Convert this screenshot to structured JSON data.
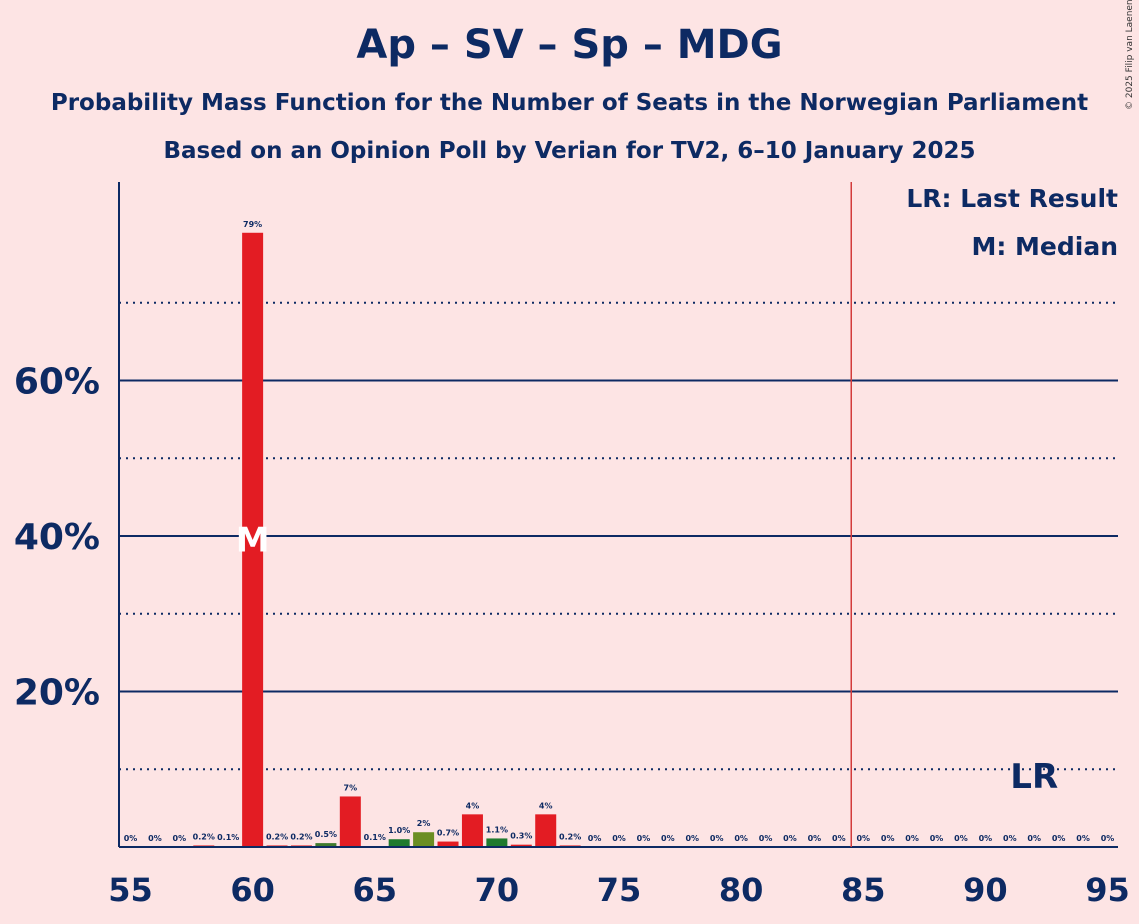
{
  "header": {
    "title": "Ap – SV – Sp – MDG",
    "subtitle": "Probability Mass Function for the Number of Seats in the Norwegian Parliament",
    "source": "Based on an Opinion Poll by Verian for TV2, 6–10 January 2025",
    "copyright": "© 2025 Filip van Laenen"
  },
  "legend": {
    "last_result": "LR: Last Result",
    "median": "M: Median"
  },
  "markers": {
    "lr_label": "LR",
    "median_label": "M"
  },
  "colors": {
    "background": "#fde4e4",
    "text": "#0d2a63",
    "bar_red": "#e31c23",
    "bar_green": "#3f7b2e",
    "bar_darkgreen": "#1f7a2e",
    "bar_olive": "#6b8e23",
    "majority_line": "#d33b3b"
  },
  "chart_data": {
    "type": "bar",
    "xlim": [
      55,
      95
    ],
    "ylim": [
      0,
      85
    ],
    "x_ticks": [
      55,
      60,
      65,
      70,
      75,
      80,
      85,
      90,
      95
    ],
    "y_ticks": [
      20,
      40,
      60
    ],
    "y_tick_labels": [
      "20%",
      "40%",
      "60%"
    ],
    "minor_gridlines": [
      10,
      30,
      50,
      70
    ],
    "grid": true,
    "legend_position": "top-right",
    "median": 60,
    "last_result": 92,
    "majority_line": 85,
    "seats": [
      55,
      56,
      57,
      58,
      59,
      60,
      61,
      62,
      63,
      64,
      65,
      66,
      67,
      68,
      69,
      70,
      71,
      72,
      73,
      74,
      75,
      76,
      77,
      78,
      79,
      80,
      81,
      82,
      83,
      84,
      85,
      86,
      87,
      88,
      89,
      90,
      91,
      92,
      93,
      94,
      95
    ],
    "values": [
      0,
      0,
      0,
      0.2,
      0.1,
      79,
      0.2,
      0.2,
      0.5,
      6.5,
      0.1,
      1.0,
      1.9,
      0.7,
      4.2,
      1.1,
      0.3,
      4.2,
      0.2,
      0,
      0,
      0,
      0,
      0,
      0,
      0,
      0,
      0,
      0,
      0,
      0,
      0,
      0,
      0,
      0,
      0,
      0,
      0,
      0,
      0,
      0
    ],
    "labels": [
      "0%",
      "0%",
      "0%",
      "0.2%",
      "0.1%",
      "79%",
      "0.2%",
      "0.2%",
      "0.5%",
      "7%",
      "0.1%",
      "1.0%",
      "2%",
      "0.7%",
      "4%",
      "1.1%",
      "0.3%",
      "4%",
      "0.2%",
      "0%",
      "0%",
      "0%",
      "0%",
      "0%",
      "0%",
      "0%",
      "0%",
      "0%",
      "0%",
      "0%",
      "0%",
      "0%",
      "0%",
      "0%",
      "0%",
      "0%",
      "0%",
      "0%",
      "0%",
      "0%",
      "0%"
    ],
    "bar_colors": [
      "red",
      "red",
      "red",
      "red",
      "red",
      "red",
      "red",
      "red",
      "green",
      "red",
      "red",
      "darkgreen",
      "olive",
      "red",
      "red",
      "darkgreen",
      "red",
      "red",
      "red",
      "red",
      "red",
      "red",
      "red",
      "red",
      "red",
      "red",
      "red",
      "red",
      "red",
      "red",
      "red",
      "red",
      "red",
      "red",
      "red",
      "red",
      "red",
      "red",
      "red",
      "red",
      "red"
    ]
  }
}
